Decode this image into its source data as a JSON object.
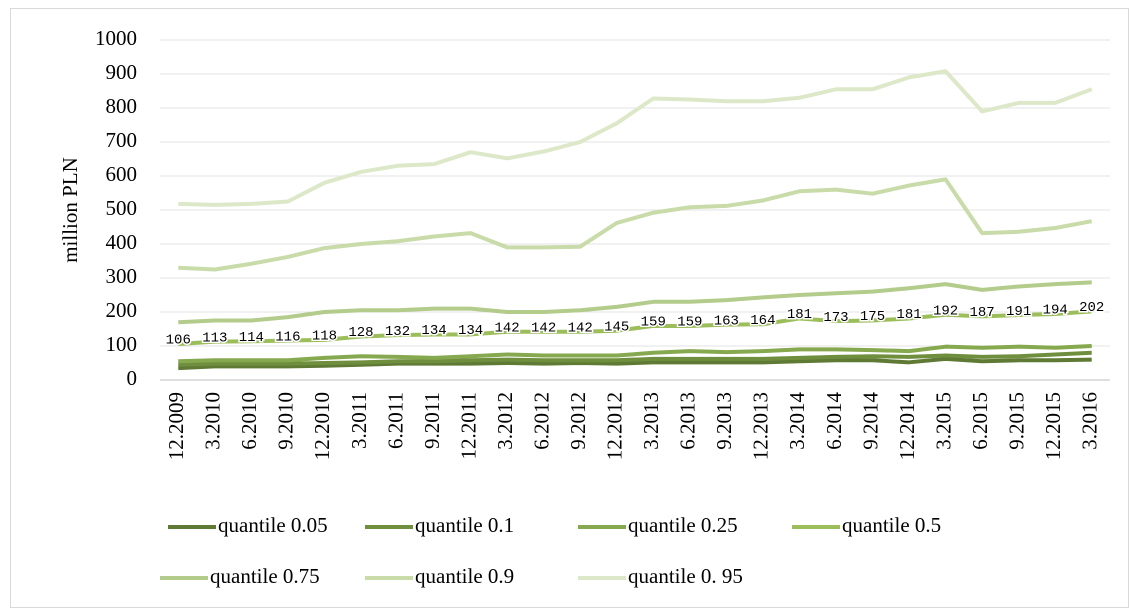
{
  "chart_data": {
    "type": "line",
    "y_label": "million PLN",
    "categories": [
      "12.2009",
      "3.2010",
      "6.2010",
      "9.2010",
      "12.2010",
      "3.2011",
      "6.2011",
      "9.2011",
      "12.2011",
      "3.2012",
      "6.2012",
      "9.2012",
      "12.2012",
      "3.2013",
      "6.2013",
      "9.2013",
      "12.2013",
      "3.2014",
      "6.2014",
      "9.2014",
      "12.2014",
      "3.2015",
      "6.2015",
      "9.2015",
      "12.2015",
      "3.2016"
    ],
    "ylim": [
      0,
      1000
    ],
    "yticks": [
      0,
      100,
      200,
      300,
      400,
      500,
      600,
      700,
      800,
      900,
      1000
    ],
    "grid": true,
    "series": [
      {
        "name": "quantile 0.05",
        "color": "#5f7a34",
        "values": [
          35,
          40,
          40,
          40,
          42,
          45,
          48,
          48,
          48,
          50,
          48,
          50,
          48,
          52,
          52,
          52,
          52,
          55,
          58,
          58,
          52,
          62,
          55,
          58,
          58,
          60
        ]
      },
      {
        "name": "quantile 0.1",
        "color": "#6f8f3f",
        "values": [
          45,
          48,
          48,
          48,
          50,
          52,
          55,
          55,
          58,
          60,
          58,
          58,
          58,
          62,
          62,
          62,
          62,
          65,
          68,
          70,
          68,
          72,
          68,
          70,
          75,
          80
        ]
      },
      {
        "name": "quantile 0.25",
        "color": "#86a84e",
        "values": [
          55,
          58,
          58,
          58,
          65,
          70,
          68,
          65,
          70,
          75,
          72,
          72,
          72,
          80,
          85,
          82,
          85,
          90,
          90,
          88,
          85,
          98,
          95,
          98,
          95,
          100
        ]
      },
      {
        "name": "quantile 0.5",
        "color": "#9bbd5a",
        "show_values": true,
        "values": [
          106,
          113,
          114,
          116,
          118,
          128,
          132,
          134,
          134,
          142,
          142,
          142,
          145,
          159,
          159,
          163,
          164,
          181,
          173,
          175,
          181,
          192,
          187,
          191,
          194,
          202
        ]
      },
      {
        "name": "quantile 0.75",
        "color": "#b3cc8b",
        "values": [
          170,
          175,
          175,
          185,
          200,
          205,
          205,
          210,
          210,
          200,
          200,
          205,
          215,
          230,
          230,
          235,
          243,
          250,
          255,
          260,
          270,
          282,
          265,
          275,
          282,
          287
        ]
      },
      {
        "name": "quantile 0.9",
        "color": "#c8dba9",
        "values": [
          330,
          325,
          342,
          362,
          388,
          400,
          408,
          422,
          432,
          390,
          390,
          392,
          462,
          492,
          508,
          512,
          528,
          555,
          560,
          548,
          572,
          590,
          432,
          436,
          447,
          467
        ]
      },
      {
        "name": "quantile 0. 95",
        "color": "#dde8c9",
        "values": [
          518,
          515,
          518,
          525,
          580,
          612,
          630,
          635,
          670,
          652,
          672,
          700,
          755,
          828,
          825,
          820,
          820,
          830,
          855,
          855,
          890,
          908,
          790,
          815,
          815,
          855
        ]
      }
    ]
  }
}
